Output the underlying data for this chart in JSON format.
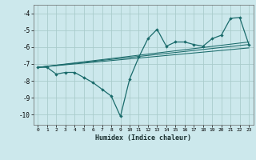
{
  "xlabel": "Humidex (Indice chaleur)",
  "background_color": "#cce8ec",
  "grid_color": "#aacccc",
  "line_color": "#1a6b6b",
  "xlim": [
    -0.5,
    23.5
  ],
  "ylim": [
    -10.6,
    -3.5
  ],
  "yticks": [
    -10,
    -9,
    -8,
    -7,
    -6,
    -5,
    -4
  ],
  "xticks": [
    0,
    1,
    2,
    3,
    4,
    5,
    6,
    7,
    8,
    9,
    10,
    11,
    12,
    13,
    14,
    15,
    16,
    17,
    18,
    19,
    20,
    21,
    22,
    23
  ],
  "series": [
    [
      0,
      -7.2
    ],
    [
      1,
      -7.2
    ],
    [
      2,
      -7.6
    ],
    [
      3,
      -7.5
    ],
    [
      4,
      -7.5
    ],
    [
      5,
      -7.8
    ],
    [
      6,
      -8.1
    ],
    [
      7,
      -8.5
    ],
    [
      8,
      -8.9
    ],
    [
      9,
      -10.1
    ],
    [
      10,
      -7.9
    ],
    [
      11,
      -6.6
    ],
    [
      12,
      -5.5
    ],
    [
      13,
      -4.95
    ],
    [
      14,
      -5.95
    ],
    [
      15,
      -5.7
    ],
    [
      16,
      -5.7
    ],
    [
      17,
      -5.85
    ],
    [
      18,
      -5.95
    ],
    [
      19,
      -5.5
    ],
    [
      20,
      -5.3
    ],
    [
      21,
      -4.3
    ],
    [
      22,
      -4.25
    ],
    [
      23,
      -5.85
    ]
  ],
  "trend_lines": [
    {
      "x": [
        0,
        23
      ],
      "y": [
        -7.2,
        -5.85
      ]
    },
    {
      "x": [
        0,
        23
      ],
      "y": [
        -7.2,
        -5.7
      ]
    },
    {
      "x": [
        0,
        23
      ],
      "y": [
        -7.2,
        -6.05
      ]
    }
  ]
}
